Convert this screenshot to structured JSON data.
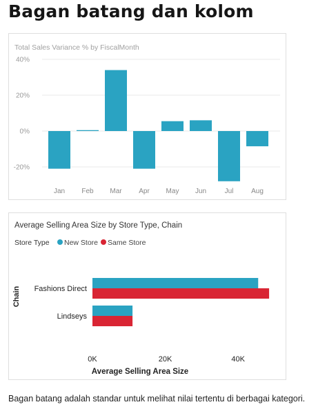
{
  "page": {
    "title": "Bagan batang dan kolom",
    "caption": "Bagan batang adalah standar untuk melihat nilai tertentu di berbagai kategori."
  },
  "colors": {
    "new_store": "#2aa3c2",
    "same_store": "#d92534",
    "gridline": "#e8e8e8",
    "muted_text": "#9a9a9a"
  },
  "chart_data": [
    {
      "type": "bar",
      "orientation": "vertical",
      "title": "Total Sales Variance % by FiscalMonth",
      "categories": [
        "Jan",
        "Feb",
        "Mar",
        "Apr",
        "May",
        "Jun",
        "Jul",
        "Aug"
      ],
      "values": [
        -21,
        0.5,
        34,
        -21,
        5.5,
        6,
        -28,
        -8.5
      ],
      "unit": "%",
      "ylim": [
        -30,
        40
      ],
      "yticks": [
        40,
        20,
        0,
        -20
      ],
      "ytick_labels": [
        "40%",
        "20%",
        "0%",
        "-20%"
      ],
      "grid": true,
      "xlabel": "",
      "ylabel": ""
    },
    {
      "type": "bar",
      "orientation": "horizontal",
      "title": "Average Selling Area Size by Store Type, Chain",
      "legend_title": "Store Type",
      "legend_position": "top-left",
      "categories": [
        "Fashions Direct",
        "Lindseys"
      ],
      "series": [
        {
          "name": "New Store",
          "values": [
            45500,
            11000
          ]
        },
        {
          "name": "Same Store",
          "values": [
            48500,
            11000
          ]
        }
      ],
      "xlim": [
        0,
        50000
      ],
      "xticks": [
        0,
        20000,
        40000
      ],
      "xtick_labels": [
        "0K",
        "20K",
        "40K"
      ],
      "xlabel": "Average Selling Area Size",
      "ylabel": "Chain",
      "grid": false
    }
  ]
}
